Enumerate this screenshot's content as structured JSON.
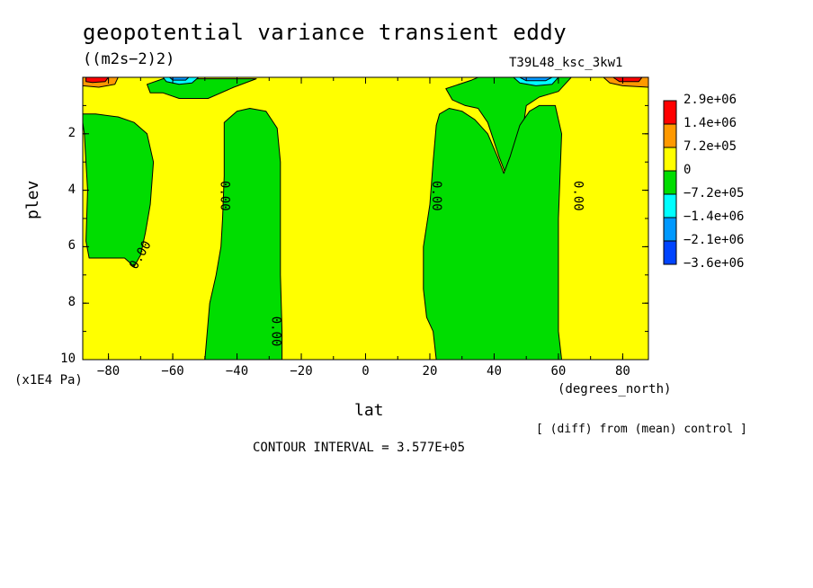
{
  "title": "geopotential variance transient eddy",
  "units": "((m2s−2)2)",
  "run_label": "T39L48_ksc_3kw1",
  "footnote_right": "[ (diff) from (mean) control ]",
  "contour_interval": "CONTOUR INTERVAL = 3.577E+05",
  "chart_data": {
    "type": "heatmap",
    "xlabel": "lat",
    "x_units": "(degrees_north)",
    "ylabel": "plev",
    "y_units": "(x1E4 Pa)",
    "xlim": [
      -88,
      88
    ],
    "ylim": [
      0,
      10
    ],
    "y_inverted": true,
    "x_ticks": [
      "−80",
      "−60",
      "−40",
      "−20",
      "0",
      "20",
      "40",
      "60",
      "80"
    ],
    "x_tick_values": [
      -80,
      -60,
      -40,
      -20,
      0,
      20,
      40,
      60,
      80
    ],
    "y_ticks": [
      "2",
      "4",
      "6",
      "8",
      "10"
    ],
    "y_tick_values": [
      2,
      4,
      6,
      8,
      10
    ],
    "contour_labels": [
      {
        "text": "0.00",
        "lat": -70,
        "plev": 6.3
      },
      {
        "text": "0.00",
        "lat": -44,
        "plev": 4.2
      },
      {
        "text": "0.00",
        "lat": -28,
        "plev": 9.0
      },
      {
        "text": "0.00",
        "lat": 22,
        "plev": 4.2
      },
      {
        "text": "0.00",
        "lat": 66,
        "plev": 4.2
      }
    ],
    "colorbar": {
      "levels": [
        "2.9e+06",
        "1.4e+06",
        "7.2e+05",
        "0",
        "−7.2e+05",
        "−1.4e+06",
        "−2.1e+06",
        "−3.6e+06"
      ],
      "colors": [
        "#ff0000",
        "#ff9900",
        "#ffff00",
        "#00dd00",
        "#00ffff",
        "#0099ff",
        "#0044ff"
      ]
    },
    "colors": {
      "positive": "#ffff00",
      "negative": "#00dd00",
      "high": "#ff9900",
      "peak": "#ff0000",
      "low": "#00ffff",
      "lower": "#0099ff"
    },
    "regions": [
      {
        "sign": "negative",
        "points": [
          [
            -88,
            1.3
          ],
          [
            -84,
            1.3
          ],
          [
            -77,
            1.4
          ],
          [
            -72,
            1.6
          ],
          [
            -68,
            2.0
          ],
          [
            -66,
            3.0
          ],
          [
            -67,
            4.5
          ],
          [
            -68.5,
            5.5
          ],
          [
            -70,
            6.3
          ],
          [
            -72,
            6.7
          ],
          [
            -75,
            6.4
          ],
          [
            -80,
            6.4
          ],
          [
            -86,
            6.4
          ],
          [
            -87,
            5.8
          ],
          [
            -86.5,
            4.0
          ],
          [
            -87.5,
            2.0
          ],
          [
            -88,
            1.6
          ]
        ]
      },
      {
        "sign": "negative",
        "points": [
          [
            -63,
            0.05
          ],
          [
            -68,
            0.25
          ],
          [
            -67,
            0.55
          ],
          [
            -63,
            0.55
          ],
          [
            -58,
            0.75
          ],
          [
            -49,
            0.75
          ],
          [
            -41,
            0.35
          ],
          [
            -34,
            0.05
          ]
        ]
      },
      {
        "sign": "negative",
        "points": [
          [
            -44,
            1.6
          ],
          [
            -40,
            1.2
          ],
          [
            -36,
            1.1
          ],
          [
            -31,
            1.2
          ],
          [
            -27.5,
            1.8
          ],
          [
            -26.5,
            3.0
          ],
          [
            -26.5,
            5.0
          ],
          [
            -26.5,
            7.0
          ],
          [
            -26,
            9.0
          ],
          [
            -26,
            10.0
          ],
          [
            -50,
            10.0
          ],
          [
            -48.5,
            8.0
          ],
          [
            -46.5,
            7.0
          ],
          [
            -45,
            6.0
          ],
          [
            -44.5,
            5.0
          ],
          [
            -44,
            3.5
          ]
        ]
      },
      {
        "sign": "negative",
        "points": [
          [
            33,
            0.1
          ],
          [
            35,
            0.0
          ],
          [
            55,
            0.0
          ],
          [
            64,
            0.0
          ],
          [
            60,
            0.5
          ],
          [
            54,
            0.7
          ],
          [
            50,
            1.0
          ],
          [
            49,
            1.8
          ],
          [
            46,
            2.8
          ],
          [
            43.5,
            3.4
          ],
          [
            41.5,
            2.8
          ],
          [
            38,
            1.6
          ],
          [
            35,
            1.1
          ],
          [
            31,
            1.0
          ],
          [
            27,
            0.8
          ],
          [
            25,
            0.4
          ]
        ]
      },
      {
        "sign": "negative",
        "points": [
          [
            22,
            1.7
          ],
          [
            23,
            1.3
          ],
          [
            26,
            1.1
          ],
          [
            30,
            1.2
          ],
          [
            34,
            1.5
          ],
          [
            38,
            2.0
          ],
          [
            41,
            2.8
          ],
          [
            43,
            3.4
          ],
          [
            45,
            2.8
          ],
          [
            48,
            1.7
          ],
          [
            51,
            1.2
          ],
          [
            54,
            1.0
          ],
          [
            59,
            1.0
          ],
          [
            61,
            2.0
          ],
          [
            60.5,
            3.5
          ],
          [
            60,
            5.0
          ],
          [
            60,
            7.0
          ],
          [
            60,
            9.0
          ],
          [
            61,
            10.0
          ],
          [
            22,
            10.0
          ],
          [
            21,
            9.0
          ],
          [
            19,
            8.5
          ],
          [
            18,
            7.5
          ],
          [
            18,
            6.0
          ],
          [
            20,
            4.5
          ],
          [
            21,
            3.0
          ]
        ]
      },
      {
        "sign": "high",
        "points": [
          [
            -88,
            0.0
          ],
          [
            -77,
            0.0
          ],
          [
            -78,
            0.25
          ],
          [
            -83,
            0.35
          ],
          [
            -88,
            0.3
          ]
        ]
      },
      {
        "sign": "peak",
        "points": [
          [
            -87,
            0.0
          ],
          [
            -80,
            0.0
          ],
          [
            -81,
            0.15
          ],
          [
            -85,
            0.18
          ],
          [
            -87,
            0.15
          ]
        ]
      },
      {
        "sign": "low",
        "points": [
          [
            -63,
            0.0
          ],
          [
            -52,
            0.0
          ],
          [
            -54,
            0.2
          ],
          [
            -58,
            0.25
          ],
          [
            -62,
            0.15
          ]
        ]
      },
      {
        "sign": "lower",
        "points": [
          [
            -61,
            0.0
          ],
          [
            -55,
            0.0
          ],
          [
            -56,
            0.1
          ],
          [
            -60,
            0.1
          ]
        ]
      },
      {
        "sign": "low",
        "points": [
          [
            46,
            0.0
          ],
          [
            60,
            0.0
          ],
          [
            58,
            0.25
          ],
          [
            53,
            0.3
          ],
          [
            48,
            0.2
          ]
        ]
      },
      {
        "sign": "lower",
        "points": [
          [
            48,
            0.0
          ],
          [
            58,
            0.0
          ],
          [
            56,
            0.12
          ],
          [
            50,
            0.12
          ]
        ]
      },
      {
        "sign": "high",
        "points": [
          [
            74,
            0.0
          ],
          [
            88,
            0.0
          ],
          [
            88,
            0.35
          ],
          [
            80,
            0.3
          ],
          [
            76,
            0.2
          ]
        ]
      },
      {
        "sign": "peak",
        "points": [
          [
            77,
            0.0
          ],
          [
            86,
            0.0
          ],
          [
            85,
            0.15
          ],
          [
            79,
            0.15
          ]
        ]
      }
    ]
  }
}
